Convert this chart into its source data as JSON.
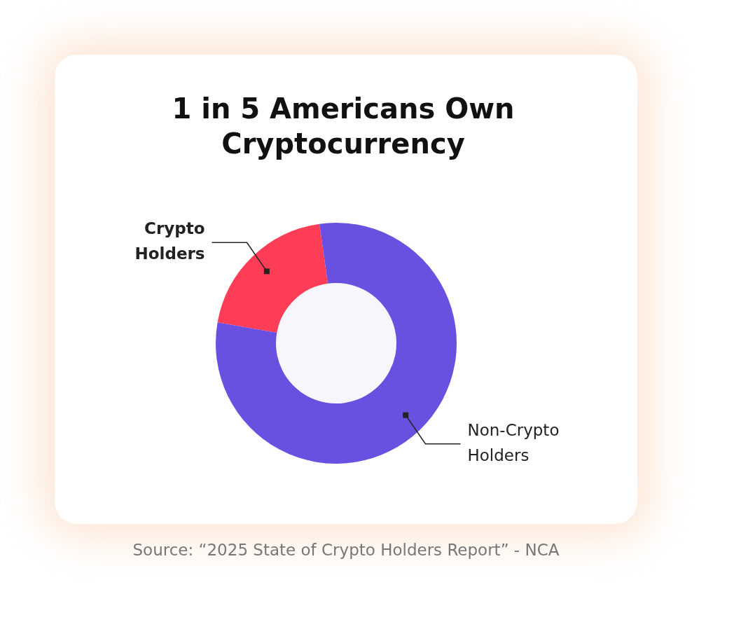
{
  "chart_data": {
    "type": "donut",
    "title": "1 in 5 Americans Own Cryptocurrency",
    "categories": [
      "Crypto Holders",
      "Non-Crypto Holders"
    ],
    "values": [
      20,
      80
    ],
    "colors": [
      "#ff3d57",
      "#6950e0"
    ],
    "legend": false,
    "annotations": [
      "Source: “2025 State of Crypto Holders Report” - NCA"
    ]
  }
}
